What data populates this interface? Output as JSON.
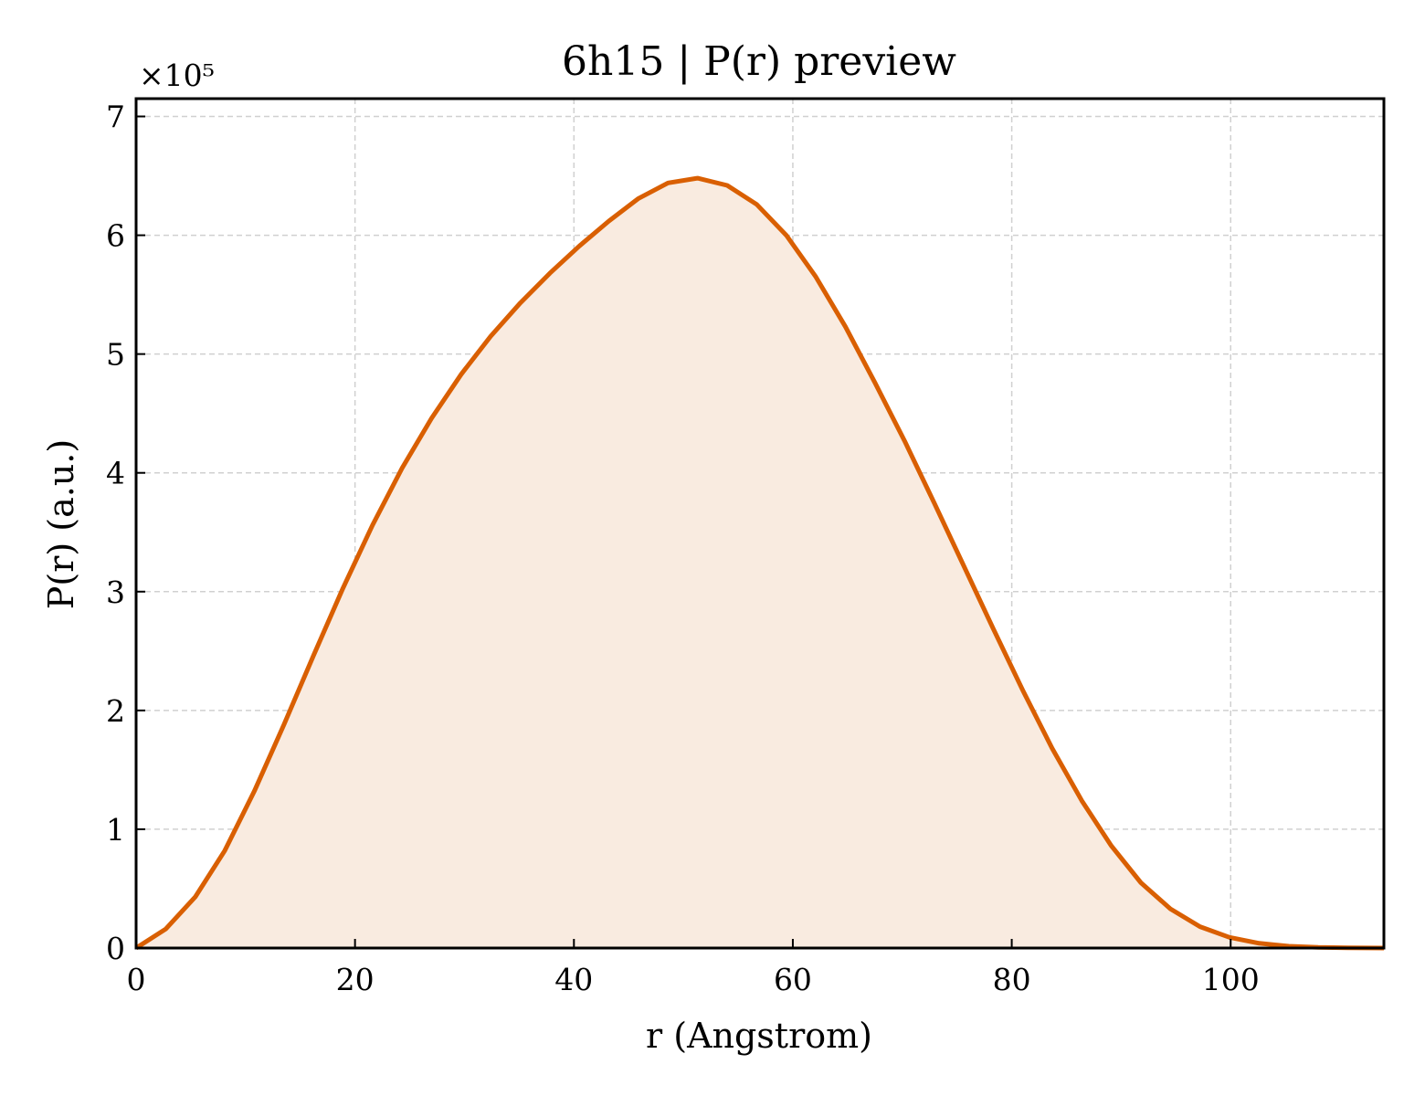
{
  "chart_data": {
    "type": "area",
    "title": "6h15 | P(r) preview",
    "xlabel": "r (Angstrom)",
    "ylabel": "P(r) (a.u.)",
    "y_multiplier": "×10⁵",
    "xlim": [
      0,
      114
    ],
    "ylim": [
      0,
      7.15
    ],
    "x_ticks": [
      0,
      20,
      40,
      60,
      80,
      100
    ],
    "y_ticks": [
      0,
      1,
      2,
      3,
      4,
      5,
      6,
      7
    ],
    "grid": true,
    "line_color": "#d95f02",
    "fill_color": "#f9ebe0",
    "series": [
      {
        "x": [
          0,
          2.7,
          5.4,
          8.1,
          10.8,
          13.5,
          16.2,
          18.9,
          21.6,
          24.3,
          27.0,
          29.7,
          32.4,
          35.1,
          37.8,
          40.5,
          43.2,
          45.9,
          48.6,
          51.3,
          54.0,
          56.7,
          59.4,
          62.1,
          64.8,
          67.5,
          70.2,
          72.9,
          75.6,
          78.3,
          81.0,
          83.7,
          86.4,
          89.1,
          91.8,
          94.5,
          97.2,
          99.9,
          102.6,
          105.3,
          108.0,
          110.7,
          114.0
        ],
        "values": [
          0.0,
          0.16,
          0.43,
          0.82,
          1.32,
          1.88,
          2.46,
          3.03,
          3.56,
          4.04,
          4.46,
          4.83,
          5.15,
          5.43,
          5.68,
          5.91,
          6.12,
          6.31,
          6.44,
          6.48,
          6.42,
          6.26,
          6.0,
          5.65,
          5.23,
          4.76,
          4.27,
          3.75,
          3.22,
          2.69,
          2.17,
          1.68,
          1.24,
          0.86,
          0.55,
          0.33,
          0.18,
          0.09,
          0.04,
          0.015,
          0.005,
          0.002,
          0.0
        ]
      }
    ]
  }
}
